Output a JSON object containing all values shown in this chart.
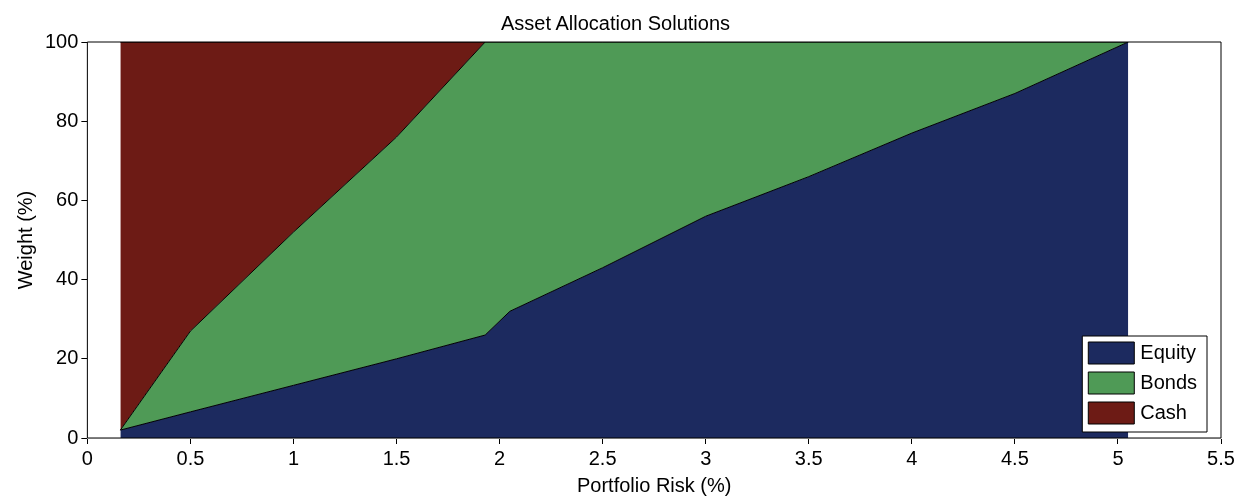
{
  "chart_data": {
    "type": "area",
    "title": "Asset Allocation Solutions",
    "xlabel": "Portfolio Risk (%)",
    "ylabel": "Weight (%)",
    "stacked": true,
    "legend": "bottom right",
    "x": [
      0.16,
      0.5,
      1,
      1.5,
      1.93,
      2.05,
      2.5,
      3,
      3.5,
      4,
      4.5,
      5.05
    ],
    "series": [
      {
        "name": "Equity",
        "color": "#1c2a5f",
        "values": [
          2,
          6.6,
          13.3,
          20,
          26,
          32,
          43,
          56,
          66,
          77,
          87,
          100
        ]
      },
      {
        "name": "Bonds",
        "color": "#4f9a56",
        "values": [
          0,
          20.4,
          38.7,
          56,
          74,
          68,
          57,
          44,
          34,
          23,
          13,
          0
        ]
      },
      {
        "name": "Cash",
        "color": "#6d1b15",
        "values": [
          98,
          73,
          48,
          24,
          0,
          null,
          null,
          null,
          null,
          null,
          null,
          null
        ]
      }
    ],
    "xlim": [
      0,
      5.5
    ],
    "xticks": [
      0,
      0.5,
      1,
      1.5,
      2,
      2.5,
      3,
      3.5,
      4,
      4.5,
      5,
      5.5
    ],
    "ylim": [
      0,
      100
    ],
    "yticks": [
      0,
      20,
      40,
      60,
      80,
      100
    ]
  }
}
